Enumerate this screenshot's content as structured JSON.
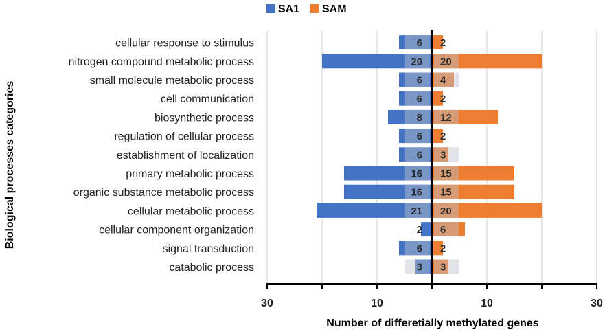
{
  "chart_data": {
    "type": "bar",
    "orientation": "horizontal-diverging",
    "title": "",
    "xlabel": "Number of differetially methylated genes",
    "ylabel": "Biological processes categories",
    "categories": [
      "cellular response to stimulus",
      "nitrogen compound metabolic process",
      "small molecule metabolic process",
      "cell communication",
      "biosynthetic process",
      "regulation of cellular process",
      "establishment of localization",
      "primary metabolic process",
      "organic substance metabolic process",
      "cellular metabolic process",
      "cellular component organization",
      "signal transduction",
      "catabolic process"
    ],
    "series": [
      {
        "name": "SA1",
        "direction": "left",
        "values": [
          6,
          20,
          6,
          6,
          8,
          6,
          6,
          16,
          16,
          21,
          2,
          6,
          3
        ]
      },
      {
        "name": "SAM",
        "direction": "right",
        "values": [
          2,
          20,
          4,
          2,
          12,
          2,
          3,
          15,
          15,
          20,
          6,
          2,
          3
        ]
      }
    ],
    "xlim": [
      -30,
      30
    ],
    "ticks": [
      -30,
      -10,
      10,
      30
    ],
    "tick_labels": [
      "30",
      "10",
      "10",
      "30"
    ],
    "legend_position": "top",
    "grid": true,
    "colors": {
      "SA1": "#4472c4",
      "SAM": "#ed7d31",
      "label_band": "#bcc3cc",
      "grid": "#d0d0d0",
      "axis": "#000000"
    }
  }
}
